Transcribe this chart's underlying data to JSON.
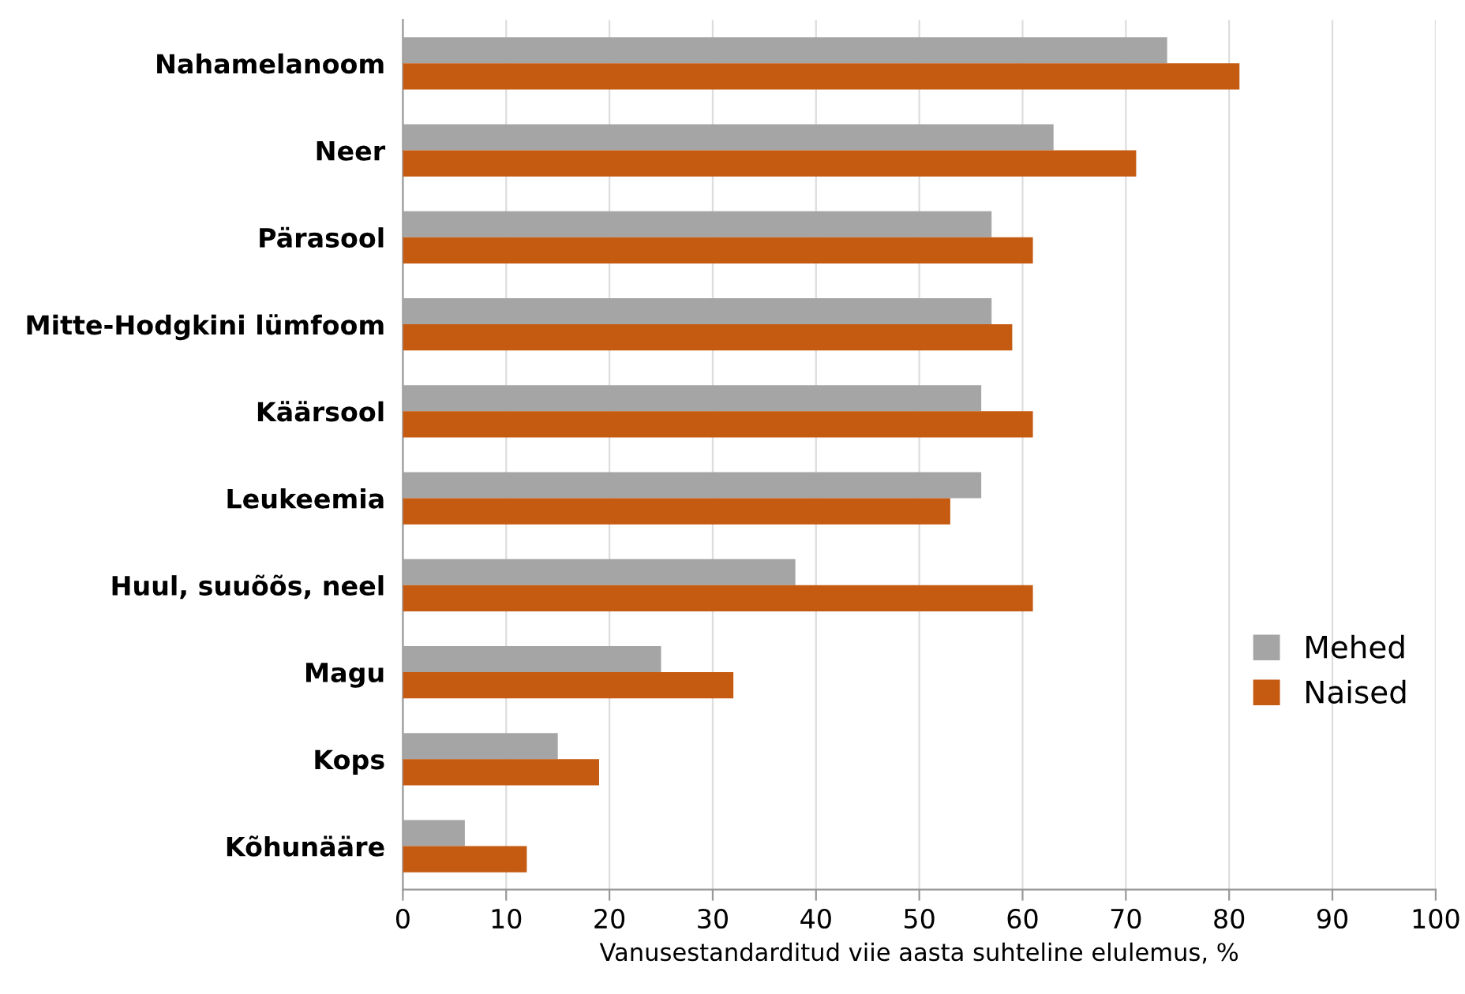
{
  "chart_data": {
    "type": "bar",
    "orientation": "horizontal",
    "xlabel": "Vanusestandarditud viie aasta suhteline elulemus, %",
    "categories": [
      "Nahamelanoom",
      "Neer",
      "Pärasool",
      "Mitte-Hodgkini lümfoom",
      "Käärsool",
      "Leukeemia",
      "Huul, suuõõs, neel",
      "Magu",
      "Kops",
      "Kõhunääre"
    ],
    "series": [
      {
        "name": "Mehed",
        "color": "#a5a5a5",
        "values": [
          74,
          63,
          57,
          57,
          56,
          56,
          38,
          25,
          15,
          6
        ]
      },
      {
        "name": "Naised",
        "color": "#c55a11",
        "values": [
          81,
          71,
          61,
          59,
          61,
          53,
          61,
          32,
          19,
          12
        ]
      }
    ],
    "xlim": [
      0,
      100
    ],
    "xticks": [
      0,
      10,
      20,
      30,
      40,
      50,
      60,
      70,
      80,
      90,
      100
    ],
    "grid": "x",
    "legend": "right"
  }
}
